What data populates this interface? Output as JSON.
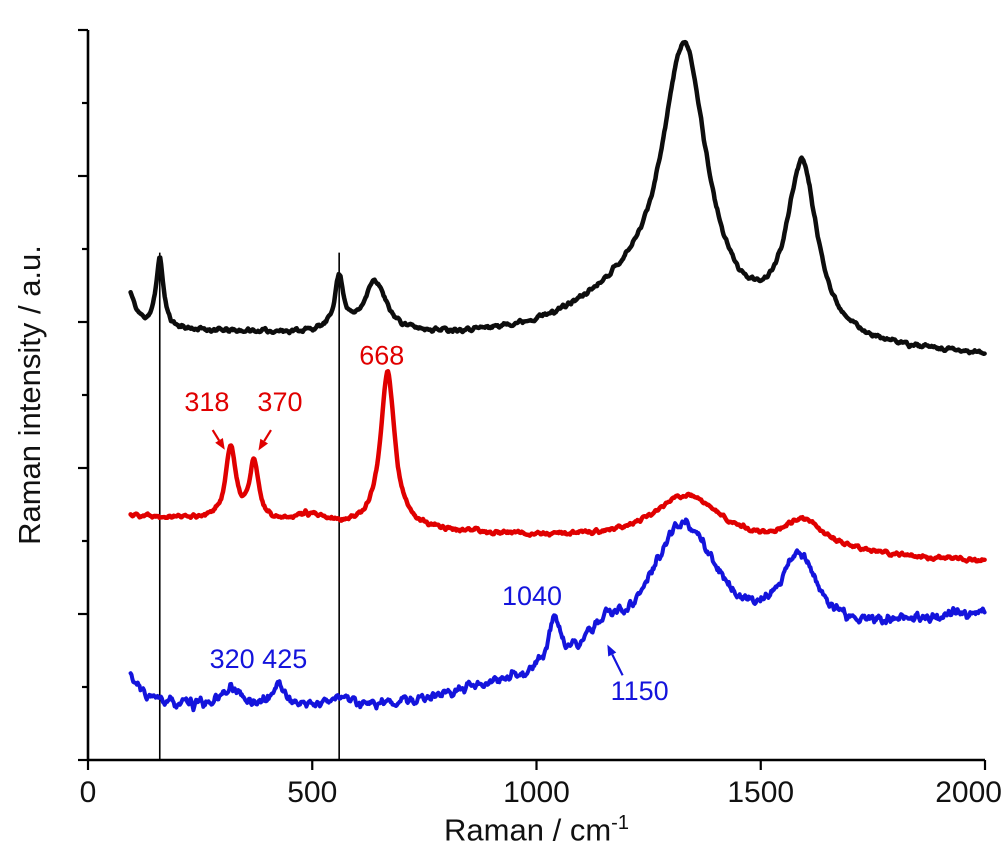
{
  "figure": {
    "background": "#ffffff",
    "ylabel": "Raman intensity / a.u.",
    "xlabel_base": "Raman / cm",
    "xlabel_exponent": "-1"
  },
  "chart_data": {
    "type": "line",
    "title": "",
    "xlabel": "Raman / cm^-1",
    "ylabel": "Raman intensity / a.u.",
    "xlim": [
      0,
      2000
    ],
    "ylim": [
      0,
      1
    ],
    "x_ticks": [
      0,
      500,
      1000,
      1500,
      2000
    ],
    "y_axis": {
      "labeled": false,
      "units": "a.u.",
      "tick_count": 11
    },
    "grid": false,
    "legend": false,
    "x_start": 95,
    "x_step": 2,
    "vlines": [
      {
        "x": 160,
        "ytop": 0.695
      },
      {
        "x": 560,
        "ytop": 0.695
      }
    ],
    "series": [
      {
        "name": "black-spectrum",
        "color": "#0d0d0d",
        "line_width": 4.5,
        "seed": 11,
        "noise": 0.003,
        "baseline": 0.588,
        "slope": -2e-05,
        "x_ref": 100,
        "peaks": [
          {
            "center": 88,
            "amp": 0.055,
            "width": 18
          },
          {
            "center": 160,
            "amp": 0.095,
            "width": 10
          },
          {
            "center": 560,
            "amp": 0.072,
            "width": 12
          },
          {
            "center": 640,
            "amp": 0.07,
            "width": 30
          },
          {
            "center": 1200,
            "amp": 0.055,
            "width": 160
          },
          {
            "center": 1330,
            "amp": 0.38,
            "width": 62
          },
          {
            "center": 1592,
            "amp": 0.235,
            "width": 42
          }
        ]
      },
      {
        "name": "red-spectrum",
        "color": "#e00000",
        "line_width": 4.5,
        "seed": 22,
        "noise": 0.0028,
        "baseline": 0.335,
        "slope": -3.4e-05,
        "x_ref": 100,
        "peaks": [
          {
            "center": 318,
            "amp": 0.1,
            "width": 13
          },
          {
            "center": 370,
            "amp": 0.078,
            "width": 12
          },
          {
            "center": 490,
            "amp": 0.012,
            "width": 40
          },
          {
            "center": 668,
            "amp": 0.215,
            "width": 19
          },
          {
            "center": 1335,
            "amp": 0.068,
            "width": 95
          },
          {
            "center": 1595,
            "amp": 0.038,
            "width": 55
          }
        ]
      },
      {
        "name": "blue-spectrum",
        "color": "#1414dc",
        "line_width": 4,
        "seed": 33,
        "noise": 0.0065,
        "baseline": 0.07,
        "slope": 0,
        "x_ref": 100,
        "ramp": {
          "start": 650,
          "end": 2000,
          "rise": 0.13
        },
        "peaks": [
          {
            "center": 60,
            "amp": 0.09,
            "width": 35
          },
          {
            "center": 320,
            "amp": 0.026,
            "width": 22
          },
          {
            "center": 425,
            "amp": 0.03,
            "width": 16
          },
          {
            "center": 560,
            "amp": 0.014,
            "width": 25
          },
          {
            "center": 1040,
            "amp": 0.065,
            "width": 16
          },
          {
            "center": 1150,
            "amp": 0.035,
            "width": 45
          },
          {
            "center": 1325,
            "amp": 0.185,
            "width": 95
          },
          {
            "center": 1585,
            "amp": 0.1,
            "width": 50
          }
        ]
      }
    ],
    "annotations": [
      {
        "text": "668",
        "color": "#e00000",
        "x": 655,
        "y": 0.542,
        "anchor": "middle"
      },
      {
        "text": "318",
        "color": "#e00000",
        "x": 265,
        "y": 0.478,
        "anchor": "middle",
        "arrow": {
          "x1": 278,
          "y1": 0.452,
          "x2": 305,
          "y2": 0.425
        }
      },
      {
        "text": "370",
        "color": "#e00000",
        "x": 428,
        "y": 0.478,
        "anchor": "middle",
        "arrow": {
          "x1": 408,
          "y1": 0.452,
          "x2": 380,
          "y2": 0.424
        }
      },
      {
        "text": "1040",
        "color": "#1414dc",
        "x": 990,
        "y": 0.212,
        "anchor": "middle"
      },
      {
        "text": "320 425",
        "color": "#1414dc",
        "x": 380,
        "y": 0.126,
        "anchor": "middle"
      },
      {
        "text": "1150",
        "color": "#1414dc",
        "x": 1230,
        "y": 0.082,
        "anchor": "middle",
        "arrow": {
          "x1": 1192,
          "y1": 0.116,
          "x2": 1158,
          "y2": 0.158
        }
      }
    ]
  }
}
